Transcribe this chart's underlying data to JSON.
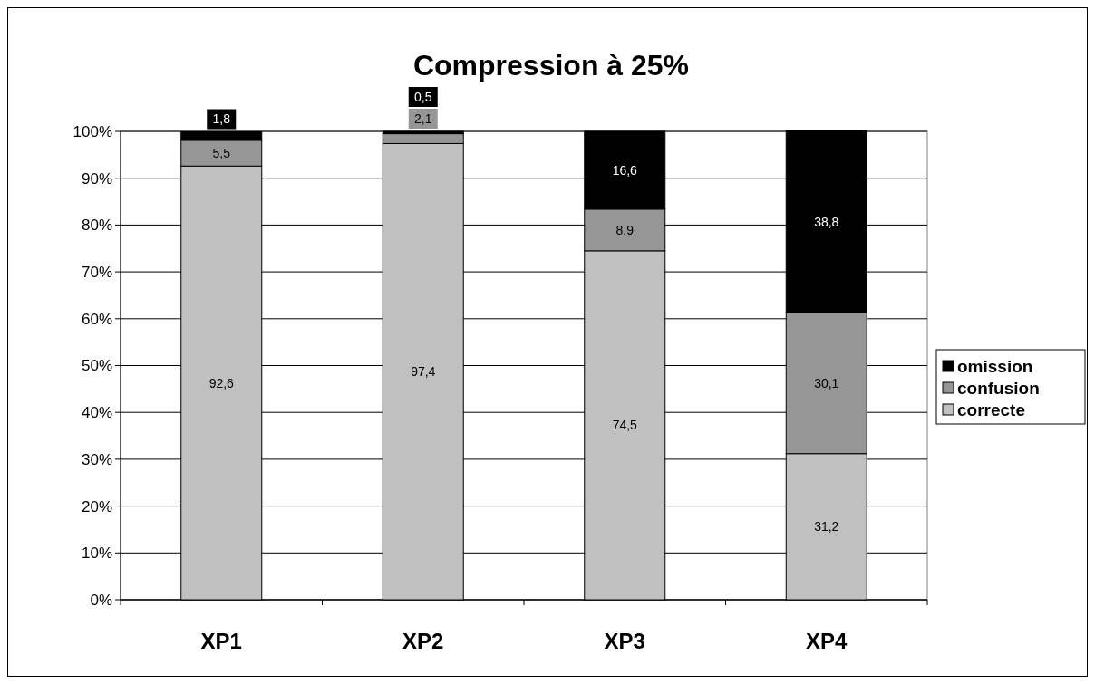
{
  "chart_data": {
    "type": "bar",
    "title": "Compression à 25%",
    "categories": [
      "XP1",
      "XP2",
      "XP3",
      "XP4"
    ],
    "stacked": true,
    "series": [
      {
        "name": "correcte",
        "color": "#c0c0c0",
        "values": [
          92.6,
          97.4,
          74.5,
          31.2
        ],
        "value_labels": [
          "92,6",
          "97,4",
          "74,5",
          "31,2"
        ]
      },
      {
        "name": "confusion",
        "color": "#969696",
        "values": [
          5.5,
          2.1,
          8.9,
          30.1
        ],
        "value_labels": [
          "5,5",
          "2,1",
          "8,9",
          "30,1"
        ]
      },
      {
        "name": "omission",
        "color": "#000000",
        "values": [
          1.8,
          0.5,
          16.6,
          38.8
        ],
        "value_labels": [
          "1,8",
          "0,5",
          "16,6",
          "38,8"
        ]
      }
    ],
    "ylim": [
      0,
      100
    ],
    "yticks": [
      {
        "value": 0,
        "label": "0%"
      },
      {
        "value": 10,
        "label": "10%"
      },
      {
        "value": 20,
        "label": "20%"
      },
      {
        "value": 30,
        "label": "30%"
      },
      {
        "value": 40,
        "label": "40%"
      },
      {
        "value": 50,
        "label": "50%"
      },
      {
        "value": 60,
        "label": "60%"
      },
      {
        "value": 70,
        "label": "70%"
      },
      {
        "value": 80,
        "label": "80%"
      },
      {
        "value": 90,
        "label": "90%"
      },
      {
        "value": 100,
        "label": "100%"
      }
    ],
    "grid": "y",
    "legend": "right"
  }
}
